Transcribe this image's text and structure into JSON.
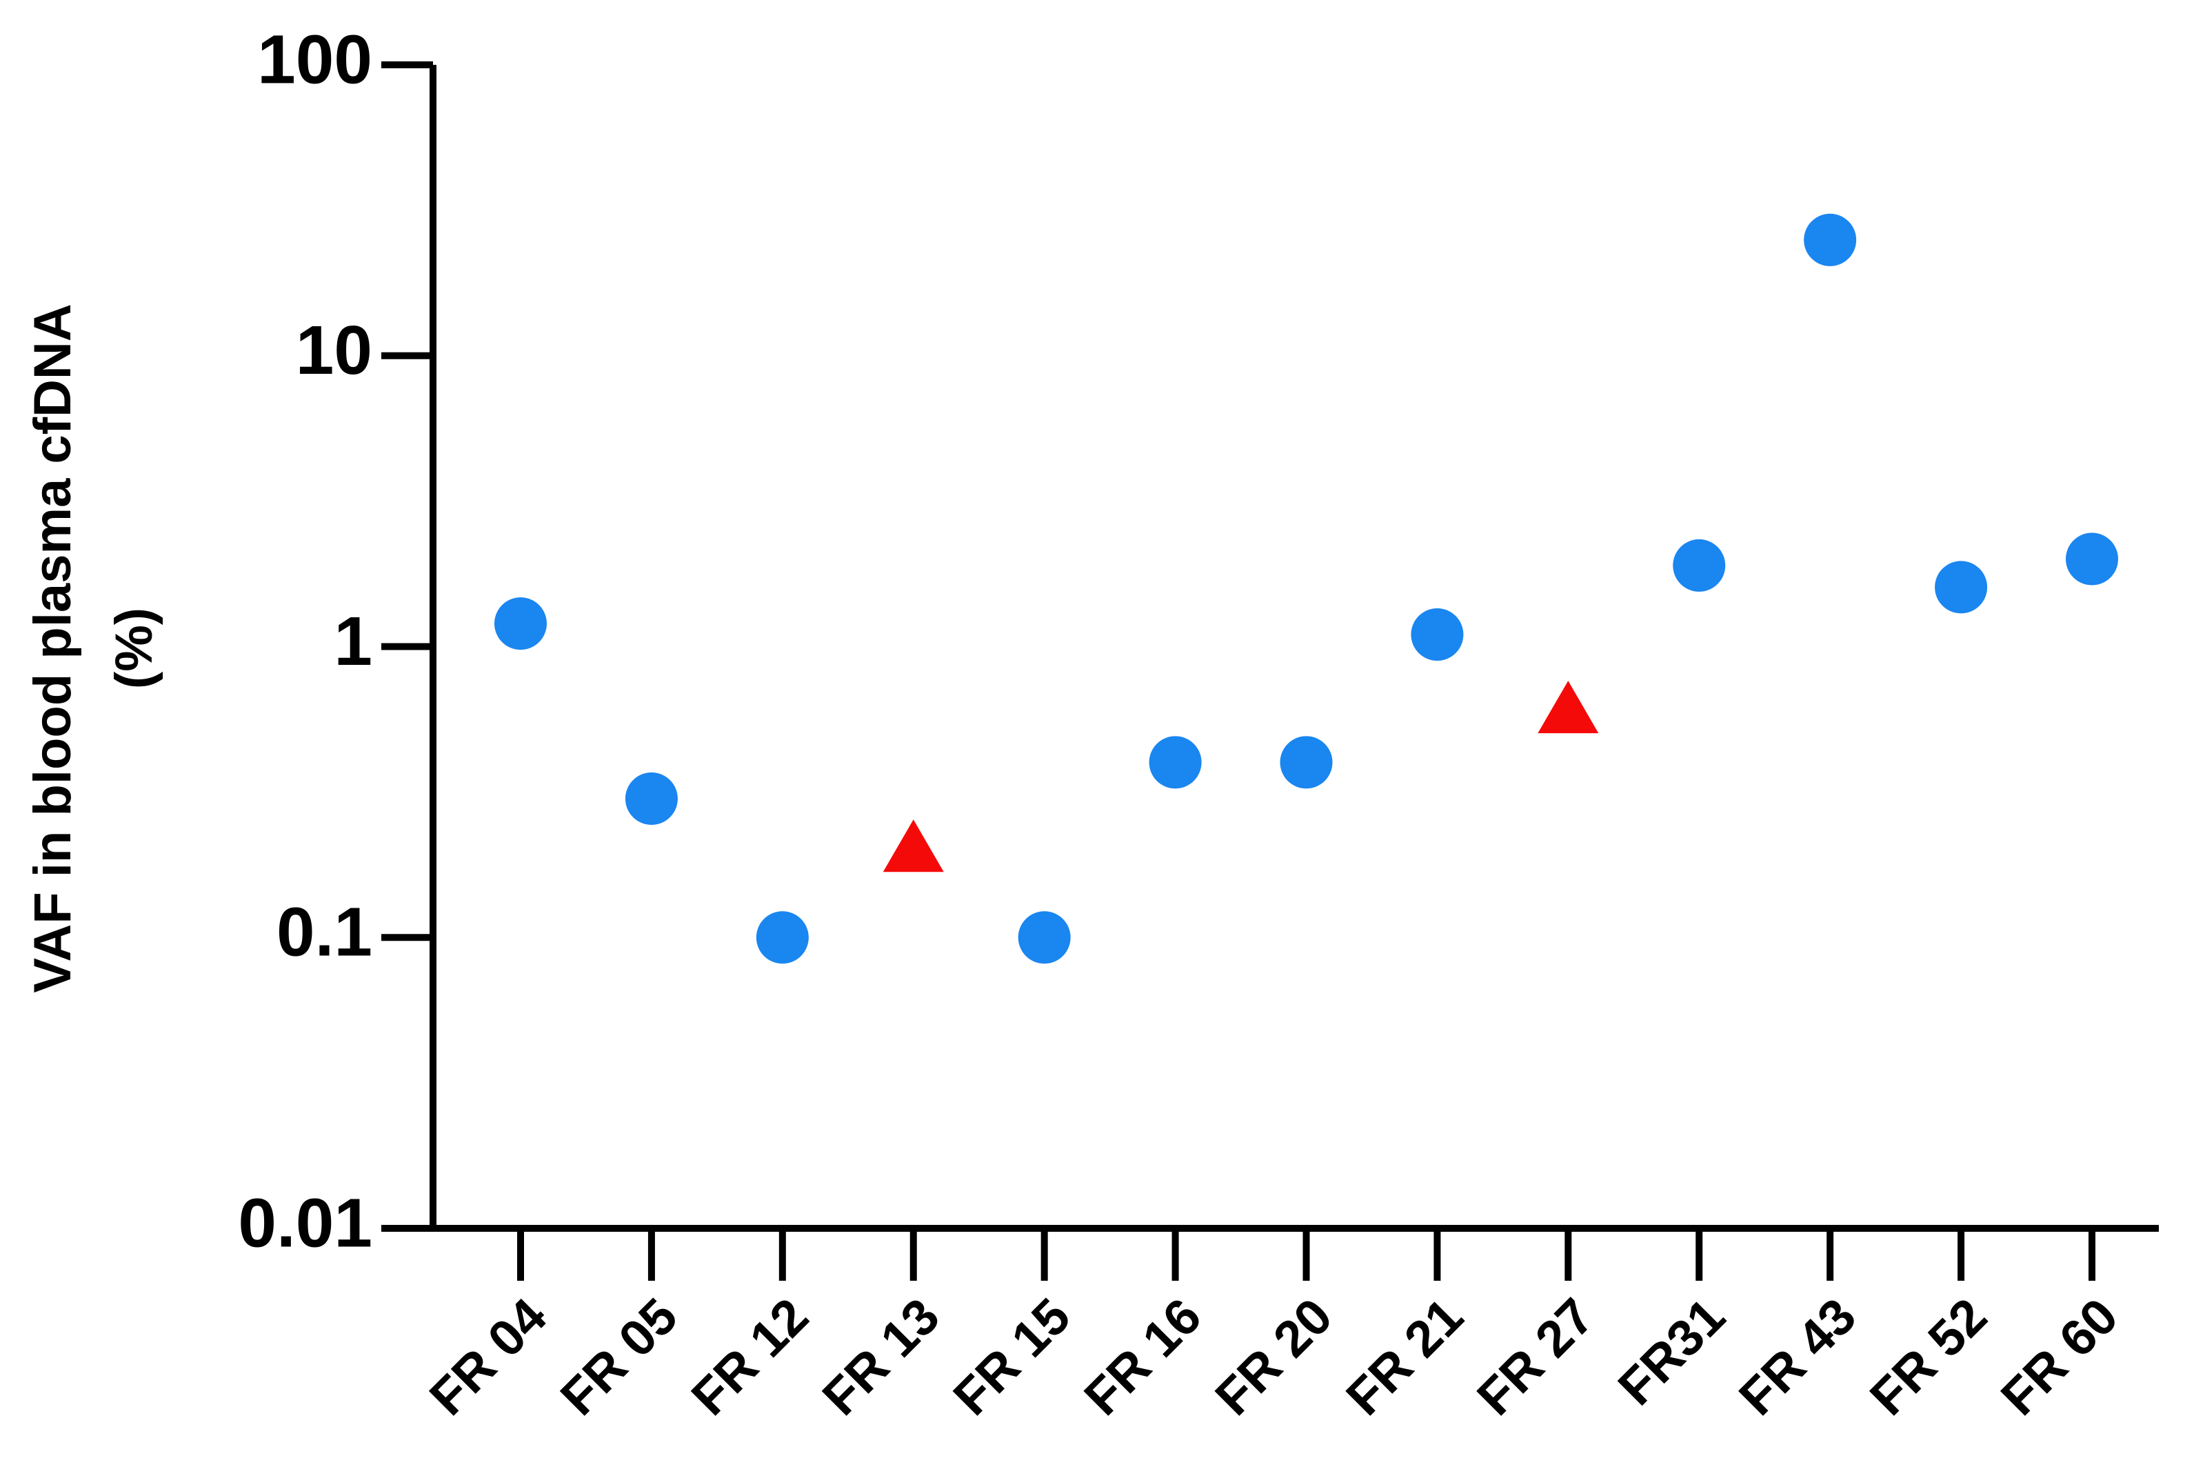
{
  "chart_data": {
    "type": "scatter",
    "ylabel": [
      "VAF in blood plasma cfDNA",
      "(%)"
    ],
    "categories": [
      "FR 04",
      "FR 05",
      "FR 12",
      "FR 13",
      "FR 15",
      "FR 16",
      "FR 20",
      "FR 21",
      "FR 27",
      "FR31",
      "FR 43",
      "FR 52",
      "FR 60"
    ],
    "series": [
      {
        "color": "#1a86f0",
        "marker": "circle",
        "values": [
          1.2,
          0.3,
          0.1,
          null,
          0.1,
          0.4,
          0.4,
          1.1,
          null,
          1.9,
          25,
          1.6,
          2.0
        ]
      },
      {
        "color": "#f50a0a",
        "marker": "triangle",
        "values": [
          null,
          null,
          null,
          0.2,
          null,
          null,
          null,
          null,
          0.6,
          null,
          null,
          null,
          null
        ]
      }
    ],
    "ylim": [
      0.01,
      100
    ],
    "yticks": [
      0.01,
      0.1,
      1,
      10,
      100
    ],
    "yscale": "log",
    "grid": false
  }
}
